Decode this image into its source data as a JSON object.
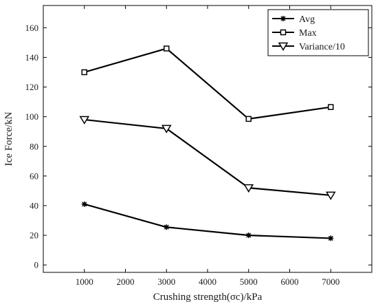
{
  "chart_data": {
    "type": "line",
    "x": [
      1000,
      3000,
      5000,
      7000
    ],
    "series": [
      {
        "name": "Avg",
        "values": [
          41,
          25.5,
          20,
          18
        ],
        "marker": "asterisk"
      },
      {
        "name": "Max",
        "values": [
          130,
          146,
          98.5,
          106.5
        ],
        "marker": "square"
      },
      {
        "name": "Variance/10",
        "values": [
          98,
          92,
          52,
          47
        ],
        "marker": "triangle-down"
      }
    ],
    "xlabel": "Crushing  strength(σc)/kPa",
    "ylabel": "Ice  Force/kN",
    "xlim": [
      0,
      8000
    ],
    "ylim": [
      -5,
      175
    ],
    "xticks": [
      1000,
      2000,
      3000,
      4000,
      5000,
      6000,
      7000
    ],
    "yticks": [
      0,
      20,
      40,
      60,
      80,
      100,
      120,
      140,
      160
    ],
    "grid": false,
    "legend_position": "top-right",
    "line_color": "#000000"
  }
}
